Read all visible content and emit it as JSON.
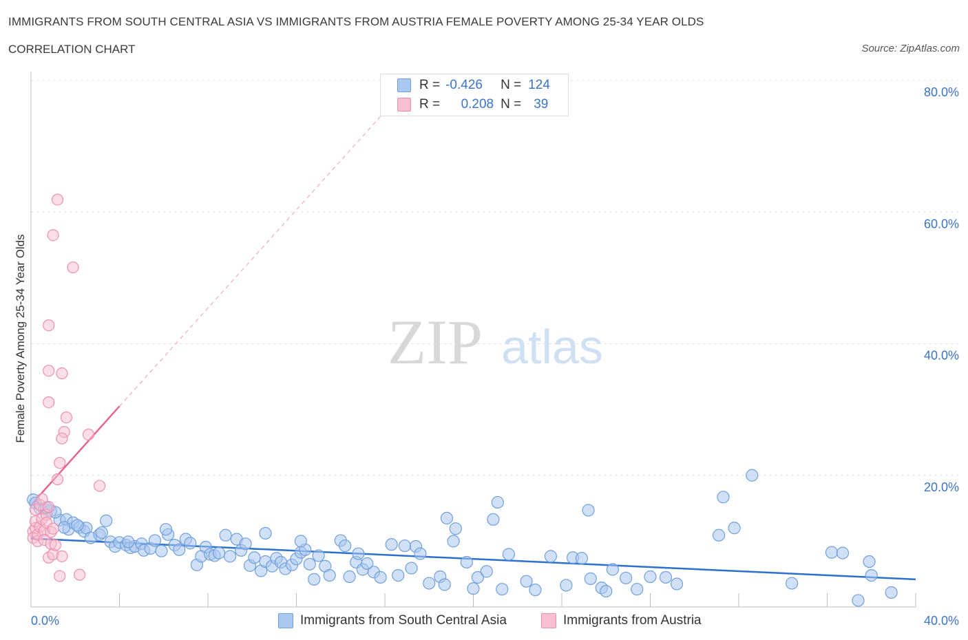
{
  "title": "IMMIGRANTS FROM SOUTH CENTRAL ASIA VS IMMIGRANTS FROM AUSTRIA FEMALE POVERTY AMONG 25-34 YEAR OLDS",
  "subtitle": "CORRELATION CHART",
  "source": "Source: ZipAtlas.com",
  "watermark": {
    "zip": "ZIP",
    "atlas": "atlas"
  },
  "legend": {
    "rows": [
      {
        "r_label": "R =",
        "r_value": "-0.426",
        "n_label": "N =",
        "n_value": "124"
      },
      {
        "r_label": "R =",
        "r_value": "0.208",
        "n_label": "N =",
        "n_value": "39"
      }
    ]
  },
  "colors": {
    "blue_fill": "#a9c7ef",
    "blue_stroke": "#6f9fdc",
    "blue_line": "#2a6fd1",
    "pink_fill": "#f7bfd0",
    "pink_stroke": "#ec8fae",
    "pink_line": "#e8638f",
    "axis_text": "#3a73c8",
    "grid": "#e0e0e0"
  },
  "chart_data": {
    "type": "scatter",
    "title": "IMMIGRANTS FROM SOUTH CENTRAL ASIA VS IMMIGRANTS FROM AUSTRIA FEMALE POVERTY AMONG 25-34 YEAR OLDS",
    "xlabel": "",
    "ylabel": "Female Poverty Among 25-34 Year Olds",
    "xlim": [
      0,
      40
    ],
    "ylim": [
      0,
      80
    ],
    "x_tick_labels": [
      "0.0%",
      "40.0%"
    ],
    "y_tick_labels": [
      "20.0%",
      "40.0%",
      "60.0%",
      "80.0%"
    ],
    "y_ticks": [
      20,
      40,
      60,
      80
    ],
    "series": [
      {
        "name": "Immigrants from South Central Asia",
        "color": "blue",
        "R": -0.426,
        "N": 124,
        "trend": {
          "x": [
            0,
            40
          ],
          "y": [
            10.4,
            4.2
          ]
        },
        "points": [
          [
            0.1,
            16.3
          ],
          [
            0.2,
            15.8
          ],
          [
            0.4,
            15.0
          ],
          [
            0.6,
            14.9
          ],
          [
            0.9,
            14.6
          ],
          [
            1.3,
            13.2
          ],
          [
            1.6,
            13.3
          ],
          [
            1.7,
            11.8
          ],
          [
            1.9,
            12.8
          ],
          [
            2.2,
            12.1
          ],
          [
            2.4,
            11.5
          ],
          [
            2.5,
            12.0
          ],
          [
            2.7,
            10.5
          ],
          [
            3.1,
            11.0
          ],
          [
            3.4,
            13.1
          ],
          [
            3.6,
            9.9
          ],
          [
            3.8,
            9.2
          ],
          [
            4.0,
            9.8
          ],
          [
            4.3,
            9.4
          ],
          [
            4.5,
            9.0
          ],
          [
            4.7,
            9.2
          ],
          [
            5.0,
            9.6
          ],
          [
            5.1,
            8.6
          ],
          [
            5.4,
            8.9
          ],
          [
            5.6,
            10.1
          ],
          [
            5.9,
            8.5
          ],
          [
            6.2,
            11.0
          ],
          [
            6.5,
            9.4
          ],
          [
            6.7,
            8.7
          ],
          [
            7.0,
            10.3
          ],
          [
            7.2,
            9.7
          ],
          [
            7.5,
            6.4
          ],
          [
            7.7,
            7.7
          ],
          [
            7.9,
            9.1
          ],
          [
            8.1,
            8.0
          ],
          [
            8.3,
            7.8
          ],
          [
            8.5,
            8.2
          ],
          [
            8.8,
            10.9
          ],
          [
            9.0,
            7.7
          ],
          [
            9.3,
            10.3
          ],
          [
            9.5,
            8.6
          ],
          [
            9.7,
            9.6
          ],
          [
            9.9,
            6.3
          ],
          [
            10.1,
            7.5
          ],
          [
            10.4,
            5.5
          ],
          [
            10.6,
            6.9
          ],
          [
            10.9,
            6.2
          ],
          [
            11.1,
            7.4
          ],
          [
            11.3,
            6.8
          ],
          [
            11.5,
            5.8
          ],
          [
            11.8,
            6.4
          ],
          [
            12.0,
            7.3
          ],
          [
            12.2,
            8.3
          ],
          [
            12.4,
            8.7
          ],
          [
            12.6,
            6.5
          ],
          [
            12.8,
            4.2
          ],
          [
            13.0,
            7.8
          ],
          [
            13.3,
            6.2
          ],
          [
            13.5,
            4.8
          ],
          [
            14.0,
            10.1
          ],
          [
            14.2,
            9.3
          ],
          [
            14.4,
            4.6
          ],
          [
            14.7,
            6.8
          ],
          [
            15.0,
            5.7
          ],
          [
            15.2,
            6.6
          ],
          [
            15.5,
            5.3
          ],
          [
            15.8,
            4.5
          ],
          [
            16.3,
            9.5
          ],
          [
            16.6,
            4.8
          ],
          [
            16.9,
            9.3
          ],
          [
            17.2,
            5.9
          ],
          [
            17.4,
            9.2
          ],
          [
            17.6,
            8.1
          ],
          [
            18.0,
            3.6
          ],
          [
            18.5,
            4.6
          ],
          [
            18.7,
            3.4
          ],
          [
            19.2,
            11.9
          ],
          [
            19.7,
            6.8
          ],
          [
            20.0,
            2.8
          ],
          [
            20.2,
            4.5
          ],
          [
            20.6,
            5.4
          ],
          [
            20.9,
            13.3
          ],
          [
            21.3,
            2.7
          ],
          [
            21.6,
            8.0
          ],
          [
            22.4,
            3.9
          ],
          [
            22.8,
            2.6
          ],
          [
            23.5,
            7.7
          ],
          [
            24.2,
            3.3
          ],
          [
            24.5,
            7.5
          ],
          [
            24.9,
            7.4
          ],
          [
            25.3,
            4.3
          ],
          [
            25.8,
            2.9
          ],
          [
            26.0,
            2.4
          ],
          [
            26.3,
            5.7
          ],
          [
            26.9,
            4.4
          ],
          [
            27.4,
            2.7
          ],
          [
            28.0,
            4.6
          ],
          [
            28.7,
            4.5
          ],
          [
            29.2,
            3.5
          ],
          [
            31.1,
            10.9
          ],
          [
            31.8,
            12.0
          ],
          [
            34.4,
            3.6
          ],
          [
            36.2,
            8.3
          ],
          [
            36.7,
            8.2
          ],
          [
            37.4,
            1.0
          ],
          [
            37.9,
            6.9
          ],
          [
            38.0,
            4.8
          ],
          [
            38.9,
            2.2
          ],
          [
            32.6,
            20.0
          ],
          [
            31.3,
            16.7
          ],
          [
            21.1,
            15.9
          ],
          [
            25.2,
            14.7
          ],
          [
            18.8,
            13.5
          ],
          [
            19.1,
            10.0
          ],
          [
            12.2,
            10.0
          ],
          [
            10.6,
            11.2
          ],
          [
            6.1,
            11.8
          ],
          [
            4.4,
            9.9
          ],
          [
            3.2,
            11.3
          ],
          [
            2.1,
            12.4
          ],
          [
            1.1,
            14.4
          ],
          [
            0.7,
            15.1
          ],
          [
            1.5,
            12.1
          ],
          [
            14.8,
            8.1
          ]
        ]
      },
      {
        "name": "Immigrants from Austria",
        "color": "pink",
        "R": 0.208,
        "N": 39,
        "trend": {
          "x": [
            0,
            4.0
          ],
          "y": [
            15.5,
            30.5
          ]
        },
        "trend_extended": {
          "x": [
            4.0,
            17.0
          ],
          "y": [
            30.5,
            79.0
          ]
        },
        "points": [
          [
            0.1,
            11.5
          ],
          [
            0.1,
            10.5
          ],
          [
            0.2,
            12.0
          ],
          [
            0.2,
            13.0
          ],
          [
            0.2,
            14.8
          ],
          [
            0.3,
            10.0
          ],
          [
            0.3,
            11.0
          ],
          [
            0.4,
            12.2
          ],
          [
            0.4,
            15.5
          ],
          [
            0.5,
            16.4
          ],
          [
            0.5,
            13.4
          ],
          [
            0.6,
            11.6
          ],
          [
            0.6,
            10.2
          ],
          [
            0.7,
            14.0
          ],
          [
            0.7,
            12.8
          ],
          [
            0.8,
            15.2
          ],
          [
            0.8,
            7.5
          ],
          [
            0.9,
            11.4
          ],
          [
            0.9,
            9.6
          ],
          [
            1.0,
            8.0
          ],
          [
            1.0,
            11.9
          ],
          [
            1.1,
            9.4
          ],
          [
            1.2,
            19.4
          ],
          [
            1.3,
            4.7
          ],
          [
            1.4,
            7.7
          ],
          [
            1.3,
            21.9
          ],
          [
            1.6,
            28.8
          ],
          [
            1.5,
            26.6
          ],
          [
            1.4,
            25.6
          ],
          [
            0.8,
            31.1
          ],
          [
            0.8,
            35.9
          ],
          [
            1.4,
            35.5
          ],
          [
            0.8,
            42.8
          ],
          [
            1.9,
            51.6
          ],
          [
            1.0,
            56.5
          ],
          [
            1.2,
            61.9
          ],
          [
            2.2,
            4.9
          ],
          [
            2.6,
            26.2
          ],
          [
            3.1,
            18.4
          ]
        ]
      }
    ]
  },
  "bottom_legend": [
    "Immigrants from South Central Asia",
    "Immigrants from Austria"
  ]
}
